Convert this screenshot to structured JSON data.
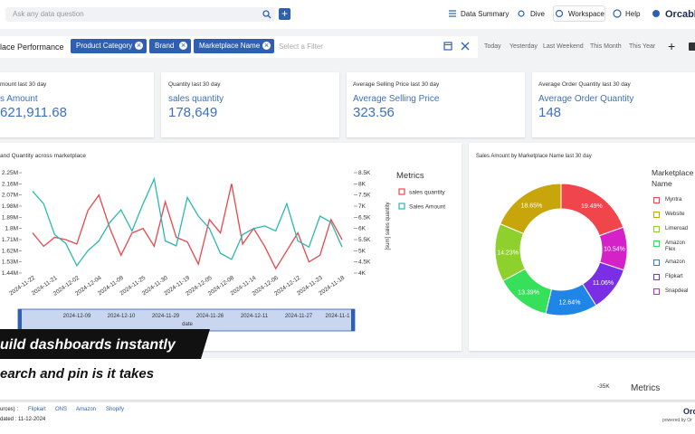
{
  "top_bar": {
    "search_placeholder": "Ask any data question",
    "nav": [
      "Data Summary",
      "Dive",
      "Workspace",
      "Help"
    ],
    "brand": "Orcabl"
  },
  "filter_bar": {
    "title": "lace Performance",
    "chips": [
      "Product Category",
      "Brand",
      "Marketplace Name"
    ],
    "placeholder": "Select a Filter",
    "date_options": [
      "Today",
      "Yesterday",
      "Last Weekend",
      "This Month",
      "This Year"
    ]
  },
  "kpis": [
    {
      "caption": "mount last 30 day",
      "label": "s Amount",
      "value": "621,911.68"
    },
    {
      "caption": "Quantity last 30 day",
      "label": "sales quantity",
      "value": "178,649"
    },
    {
      "caption": "Average Selling Price last 30 day",
      "label": "Average Selling Price",
      "value": "323.56"
    },
    {
      "caption": "Average Order Quantity last 30 day",
      "label": "Average Order Quantity",
      "value": "148"
    }
  ],
  "line_chart": {
    "type": "line",
    "title": "and Quantity across marketplace",
    "categories": [
      "2024-11-22",
      null,
      "2024-11-21",
      null,
      "2024-12-02",
      null,
      "2024-12-04",
      null,
      "2024-11-09",
      null,
      "2024-11-25",
      null,
      "2024-11-30",
      null,
      "2024-11-19",
      null,
      "2024-12-05",
      null,
      "2024-12-08",
      null,
      "2024-11-14",
      null,
      "2024-12-06",
      null,
      "2024-12-12",
      null,
      "2024-11-23",
      null,
      "2024-11-18"
    ],
    "series": [
      {
        "name": "sales quantity",
        "color": "#e8474c",
        "axis": "y2",
        "values": [
          5800,
          5200,
          5600,
          5500,
          5300,
          6800,
          7500,
          6000,
          4800,
          5800,
          6000,
          5200,
          7200,
          5600,
          5400,
          4400,
          6400,
          5800,
          8000,
          5300,
          6000,
          5200,
          4200,
          5000,
          5800,
          4500,
          4800,
          6400,
          5500
        ]
      },
      {
        "name": "Sales Amount",
        "color": "#2bb8b0",
        "values": [
          2100000,
          2000000,
          1750000,
          1680000,
          1500000,
          1620000,
          1700000,
          1850000,
          1950000,
          1780000,
          2000000,
          2200000,
          1700000,
          1660000,
          2050000,
          1900000,
          1800000,
          1600000,
          1550000,
          1750000,
          1800000,
          1820000,
          1780000,
          2000000,
          1700000,
          1650000,
          1900000,
          1850000,
          1650000
        ]
      }
    ],
    "ylim": [
      1440000,
      2250000
    ],
    "yticks": [
      {
        "value": 2250000,
        "label": "2.25M"
      },
      {
        "value": 2160000,
        "label": "2.16M"
      },
      {
        "value": 2070000,
        "label": "2.07M"
      },
      {
        "value": 1980000,
        "label": "1.98M"
      },
      {
        "value": 1890000,
        "label": "1.89M"
      },
      {
        "value": 1800000,
        "label": "1.8M"
      },
      {
        "value": 1710000,
        "label": "1.71M"
      },
      {
        "value": 1620000,
        "label": "1.62M"
      },
      {
        "value": 1530000,
        "label": "1.53M"
      },
      {
        "value": 1440000,
        "label": "1.44M"
      }
    ],
    "y2lim": [
      4000,
      8500
    ],
    "y2ticks": [
      {
        "value": 8500,
        "label": "8.5K"
      },
      {
        "value": 8000,
        "label": "8K"
      },
      {
        "value": 7500,
        "label": "7.5K"
      },
      {
        "value": 7000,
        "label": "7K"
      },
      {
        "value": 6500,
        "label": "6.5K"
      },
      {
        "value": 6000,
        "label": "6K"
      },
      {
        "value": 5500,
        "label": "5.5K"
      },
      {
        "value": 5000,
        "label": "5K"
      },
      {
        "value": 4500,
        "label": "4.5K"
      },
      {
        "value": 4000,
        "label": "4K"
      }
    ],
    "y2_label": "[sum] sales quantity",
    "legend_title": "Metrics",
    "slider_labels": [
      "2024-12-09",
      "2024-12-10",
      "2024-11-29",
      "2024-11-26",
      "2024-12-11",
      "2024-11-27",
      "2024-11-1"
    ],
    "slider_axis_label": "date"
  },
  "donut_chart": {
    "type": "pie",
    "title": "Sales Amount by Marketplace Name last 30 day",
    "legend_title": "Marketplace Name",
    "categories": [
      "Myntra",
      "Website",
      "Limeroad",
      "Amazon Flex",
      "Amazon",
      "Flipkart",
      "Snapdeal"
    ],
    "values": [
      19.49,
      18.65,
      14.23,
      13.39,
      12.64,
      11.06,
      10.54
    ],
    "value_labels": [
      "19.49%",
      "18.65%",
      "14.23%",
      "13.39%",
      "12.64%",
      "11.06%",
      "10.54%"
    ],
    "colors": [
      "#f0454b",
      "#c9a50c",
      "#8fd12c",
      "#36e05a",
      "#1f86e8",
      "#7a2fe6",
      "#d422c8"
    ]
  },
  "banner": {
    "line1": "uild dashboards instantly",
    "line2": "earch and pin is it takes"
  },
  "lower_panel": {
    "tick": "-35K",
    "legend_title": "Metrics"
  },
  "footer": {
    "sources_label": "urces) :",
    "sources": [
      "Flipkart",
      "ONS",
      "Amazon",
      "Shopify"
    ],
    "updated": "dated : 11-12-2024",
    "logo": "Orc",
    "powered_by": "powered by Or"
  }
}
